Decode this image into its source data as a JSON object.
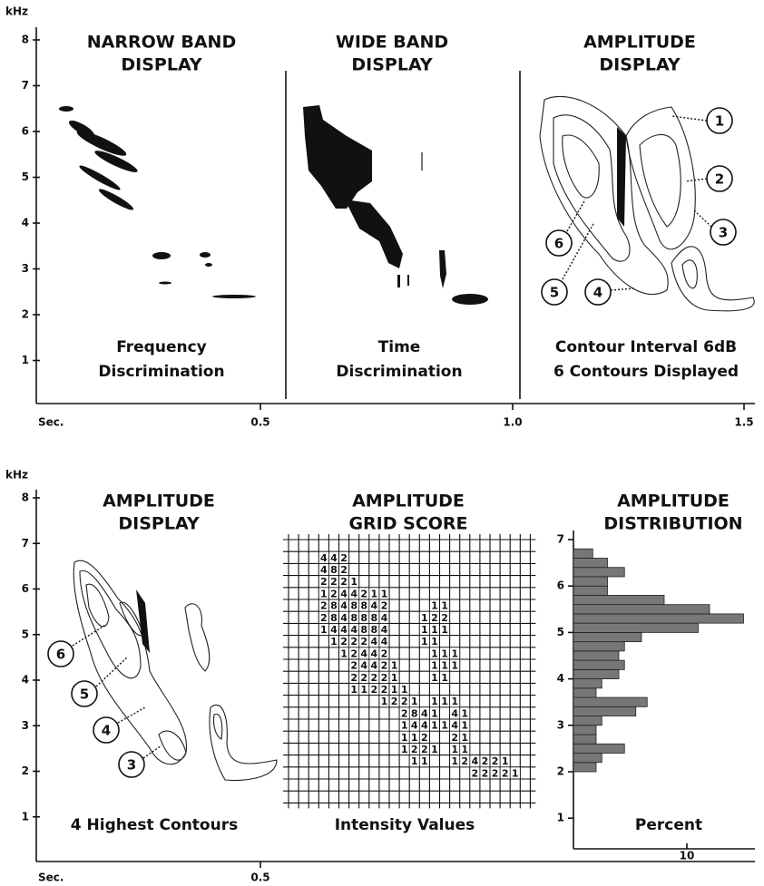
{
  "top": {
    "y_axis_label": "kHz",
    "yticks": [
      1,
      2,
      3,
      4,
      5,
      6,
      7,
      8
    ],
    "x_axis_label": "Sec.",
    "xticks": [
      "0.5",
      "1.0",
      "1.5"
    ],
    "panels": [
      {
        "title": [
          "NARROW  BAND",
          "DISPLAY"
        ],
        "caption": [
          "Frequency",
          "Discrimination"
        ]
      },
      {
        "title": [
          "WIDE BAND",
          "DISPLAY"
        ],
        "caption": [
          "Time",
          "Discrimination"
        ]
      },
      {
        "title": [
          "AMPLITUDE",
          "DISPLAY"
        ],
        "caption": [
          "Contour Interval 6dB",
          "6 Contours Displayed"
        ],
        "markers": [
          "1",
          "2",
          "3",
          "4",
          "5",
          "6"
        ]
      }
    ]
  },
  "bottom": {
    "y_axis_label": "kHz",
    "yticks": [
      1,
      2,
      3,
      4,
      5,
      6,
      7,
      8
    ],
    "x_axis_label": "Sec.",
    "xticks": [
      "0.5"
    ],
    "panels": [
      {
        "title": [
          "AMPLITUDE",
          "DISPLAY"
        ],
        "caption": [
          "4 Highest Contours"
        ],
        "markers": [
          "6",
          "5",
          "4",
          "3"
        ]
      },
      {
        "title": [
          "AMPLITUDE",
          "GRID SCORE"
        ],
        "caption": [
          "Intensity Values"
        ]
      },
      {
        "title": [
          "AMPLITUDE",
          "DISTRIBUTION"
        ],
        "caption": [
          "Percent"
        ]
      }
    ],
    "grid_score": [
      [
        null,
        null,
        null,
        4,
        4,
        2
      ],
      [
        null,
        null,
        null,
        4,
        8,
        2
      ],
      [
        null,
        null,
        null,
        2,
        2,
        2,
        1
      ],
      [
        null,
        null,
        null,
        1,
        2,
        4,
        4,
        2,
        1,
        1
      ],
      [
        null,
        null,
        null,
        2,
        8,
        4,
        8,
        8,
        4,
        2,
        null,
        null,
        null,
        null,
        1,
        1
      ],
      [
        null,
        null,
        null,
        2,
        8,
        4,
        8,
        8,
        8,
        4,
        null,
        null,
        null,
        1,
        2,
        2
      ],
      [
        null,
        null,
        null,
        1,
        4,
        4,
        4,
        8,
        8,
        4,
        null,
        null,
        null,
        1,
        1,
        1
      ],
      [
        null,
        null,
        null,
        null,
        1,
        2,
        2,
        2,
        4,
        4,
        null,
        null,
        null,
        1,
        1
      ],
      [
        null,
        null,
        null,
        null,
        null,
        1,
        2,
        4,
        4,
        2,
        null,
        null,
        null,
        null,
        1,
        1,
        1
      ],
      [
        null,
        null,
        null,
        null,
        null,
        null,
        2,
        4,
        4,
        2,
        1,
        null,
        null,
        null,
        1,
        1,
        1
      ],
      [
        null,
        null,
        null,
        null,
        null,
        null,
        2,
        2,
        2,
        2,
        1,
        null,
        null,
        null,
        1,
        1
      ],
      [
        null,
        null,
        null,
        null,
        null,
        null,
        1,
        1,
        2,
        2,
        1,
        1
      ],
      [
        null,
        null,
        null,
        null,
        null,
        null,
        null,
        null,
        null,
        1,
        2,
        2,
        1,
        null,
        1,
        1,
        1
      ],
      [
        null,
        null,
        null,
        null,
        null,
        null,
        null,
        null,
        null,
        null,
        null,
        2,
        8,
        4,
        1,
        null,
        4,
        1
      ],
      [
        null,
        null,
        null,
        null,
        null,
        null,
        null,
        null,
        null,
        null,
        null,
        1,
        4,
        4,
        1,
        1,
        4,
        1
      ],
      [
        null,
        null,
        null,
        null,
        null,
        null,
        null,
        null,
        null,
        null,
        null,
        1,
        1,
        2,
        null,
        null,
        2,
        1
      ],
      [
        null,
        null,
        null,
        null,
        null,
        null,
        null,
        null,
        null,
        null,
        null,
        1,
        2,
        2,
        1,
        null,
        1,
        1
      ],
      [
        null,
        null,
        null,
        null,
        null,
        null,
        null,
        null,
        null,
        null,
        null,
        null,
        1,
        1,
        null,
        null,
        1,
        2,
        4,
        2,
        2,
        1
      ],
      [
        null,
        null,
        null,
        null,
        null,
        null,
        null,
        null,
        null,
        null,
        null,
        null,
        null,
        null,
        null,
        null,
        null,
        null,
        2,
        2,
        2,
        2,
        1
      ]
    ],
    "distribution": {
      "yticks": [
        1,
        2,
        3,
        4,
        5,
        6,
        7
      ],
      "bins": [
        2.0,
        2.2,
        2.4,
        2.6,
        2.8,
        3.0,
        3.2,
        3.4,
        3.6,
        3.8,
        4.0,
        4.2,
        4.4,
        4.6,
        4.8,
        5.0,
        5.2,
        5.4,
        5.6,
        5.8,
        6.0,
        6.2,
        6.4,
        6.6,
        6.8
      ],
      "values": [
        2,
        2.5,
        4.5,
        2,
        2,
        2.5,
        5.5,
        6.5,
        2,
        2.5,
        4,
        4.5,
        4,
        4.5,
        6,
        11,
        15,
        12,
        8,
        3,
        3,
        4.5,
        3,
        1.7
      ],
      "xlim": [
        0,
        15.6
      ],
      "xticks": [
        10
      ]
    }
  }
}
